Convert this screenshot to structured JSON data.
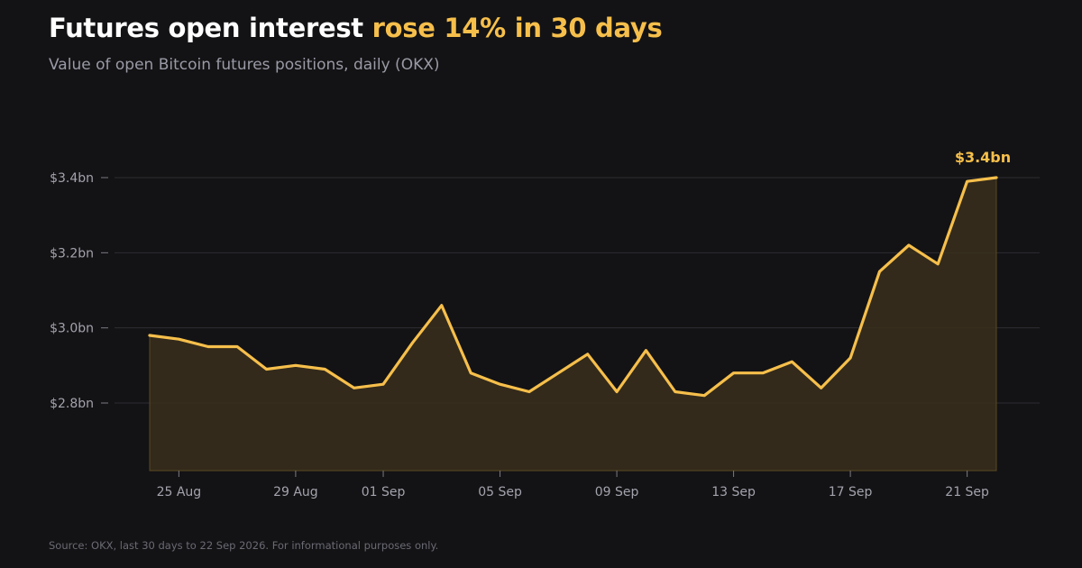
{
  "title": {
    "main": "Futures open interest ",
    "highlight": "rose 14% in 30 days"
  },
  "subtitle": "Value of open Bitcoin futures positions, daily (OKX)",
  "source": "Source: OKX, last 30 days to 22 Sep 2026.  For informational purposes only.",
  "colors": {
    "background": "#131315",
    "accent": "#f6bf4b",
    "area_fill": "#3a2f1c",
    "grid": "#2e2e33"
  },
  "chart_data": {
    "type": "area",
    "title": "Futures open interest rose 14% in 30 days",
    "subtitle": "Value of open Bitcoin futures positions, daily (OKX)",
    "xlabel": "",
    "ylabel": "",
    "x": [
      "2026-08-24",
      "2026-08-25",
      "2026-08-26",
      "2026-08-27",
      "2026-08-28",
      "2026-08-29",
      "2026-08-30",
      "2026-08-31",
      "2026-09-01",
      "2026-09-02",
      "2026-09-03",
      "2026-09-04",
      "2026-09-05",
      "2026-09-06",
      "2026-09-07",
      "2026-09-08",
      "2026-09-09",
      "2026-09-10",
      "2026-09-11",
      "2026-09-12",
      "2026-09-13",
      "2026-09-14",
      "2026-09-15",
      "2026-09-16",
      "2026-09-17",
      "2026-09-18",
      "2026-09-19",
      "2026-09-20",
      "2026-09-21",
      "2026-09-22"
    ],
    "x_tick_labels": [
      "25 Aug",
      "29 Aug",
      "01 Sep",
      "05 Sep",
      "09 Sep",
      "13 Sep",
      "17 Sep",
      "21 Sep"
    ],
    "x_tick_dates": [
      "2026-08-25",
      "2026-08-29",
      "2026-09-01",
      "2026-09-05",
      "2026-09-09",
      "2026-09-13",
      "2026-09-17",
      "2026-09-21"
    ],
    "series": [
      {
        "values": [
          2.98,
          2.97,
          2.95,
          2.95,
          2.89,
          2.9,
          2.89,
          2.84,
          2.85,
          2.96,
          3.06,
          2.88,
          2.85,
          2.83,
          2.88,
          2.93,
          2.83,
          2.94,
          2.83,
          2.82,
          2.88,
          2.88,
          2.91,
          2.84,
          2.92,
          3.15,
          3.22,
          3.17,
          3.39,
          3.4
        ]
      }
    ],
    "y_tick_values": [
      2.8,
      3.0,
      3.2,
      3.4
    ],
    "y_tick_labels": [
      "$2.8bn",
      "$3.0bn",
      "$3.2bn",
      "$3.4bn"
    ],
    "ylim": [
      2.62,
      3.4
    ],
    "end_label": "$3.4bn",
    "grid": true,
    "legend": "none"
  }
}
